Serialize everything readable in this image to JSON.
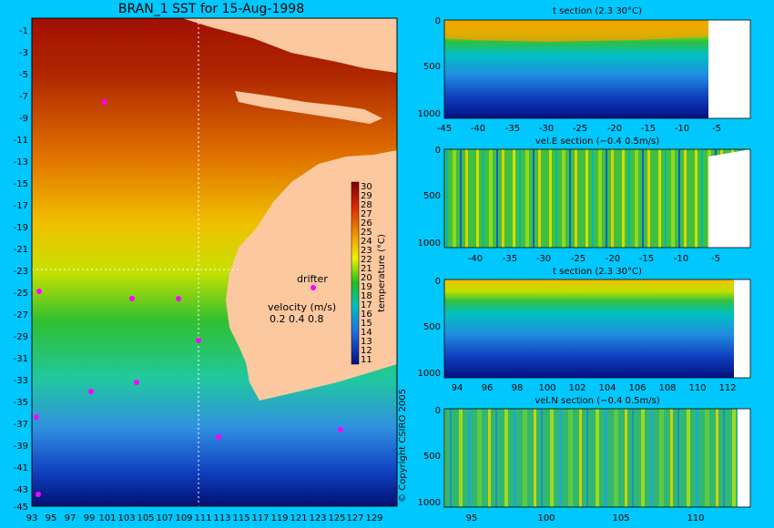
{
  "title": "BRAN_1 SST for 15-Aug-1998",
  "map": {
    "lat_labels": [
      "-1",
      "-3",
      "-5",
      "-7",
      "-9",
      "-11",
      "-13",
      "-15",
      "-17",
      "-19",
      "-21",
      "-23",
      "-25",
      "-27",
      "-29",
      "-31",
      "-33",
      "-35",
      "-37",
      "-39",
      "-41",
      "-43",
      "-45"
    ],
    "lon_labels": [
      "93",
      "95",
      "97",
      "99",
      "101",
      "103",
      "105",
      "107",
      "109",
      "111",
      "113",
      "115",
      "117",
      "119",
      "121",
      "123",
      "125",
      "127",
      "129"
    ],
    "colorbar_ticks": [
      "30",
      "29",
      "28",
      "27",
      "26",
      "25",
      "24",
      "23",
      "22",
      "21",
      "20",
      "19",
      "18",
      "17",
      "16",
      "15",
      "14",
      "13",
      "12",
      "11"
    ],
    "colorbar_label": "temperature (°C)",
    "drifter_label": "drifter",
    "velocity_label": "velocity (m/s)",
    "velocity_scale": "0.2 0.4 0.8",
    "copyright": "© Copyright CSIRO 2005"
  },
  "sections": [
    {
      "title": "t section (2.3      30°C)",
      "y_ticks": [
        "0",
        "500",
        "1000"
      ],
      "x_ticks": [
        "-45",
        "-40",
        "-35",
        "-30",
        "-25",
        "-20",
        "-15",
        "-10",
        "-5"
      ]
    },
    {
      "title": "vel.E section (−0.4      0.5m/s)",
      "y_ticks": [
        "0",
        "500",
        "1000"
      ],
      "x_ticks": [
        "-40",
        "-35",
        "-30",
        "-25",
        "-20",
        "-15",
        "-10",
        "-5"
      ]
    },
    {
      "title": "t section (2.3      30°C)",
      "y_ticks": [
        "0",
        "500",
        "1000"
      ],
      "x_ticks": [
        "94",
        "96",
        "98",
        "100",
        "102",
        "104",
        "106",
        "108",
        "110",
        "112"
      ]
    },
    {
      "title": "vel.N section (−0.4      0.5m/s)",
      "y_ticks": [
        "0",
        "500",
        "1000"
      ],
      "x_ticks": [
        "95",
        "100",
        "105",
        "110"
      ]
    }
  ]
}
